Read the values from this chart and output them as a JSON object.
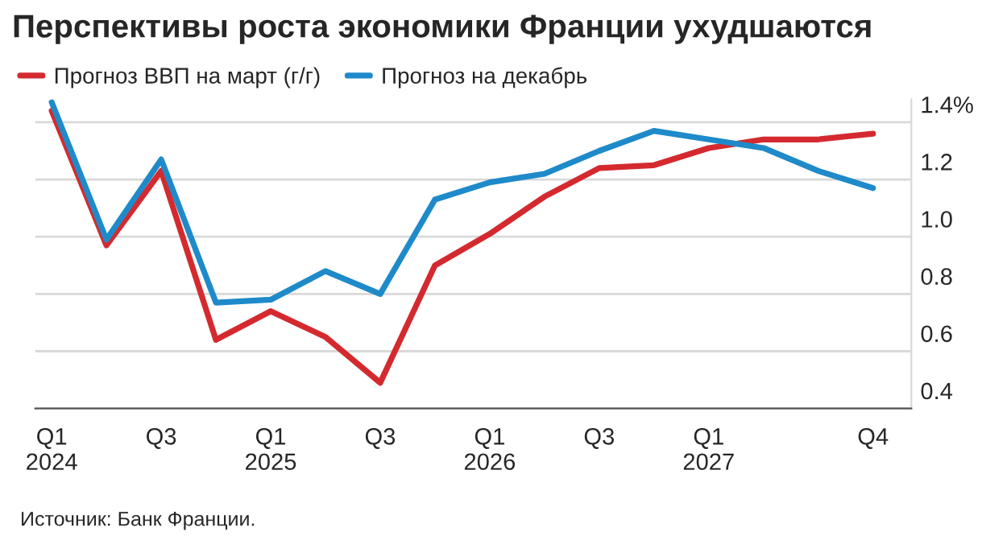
{
  "chart_data": {
    "type": "line",
    "title": "Перспективы роста экономики Франции ухудшаются",
    "categories": [
      "Q1\n2024",
      null,
      "Q3",
      null,
      "Q1\n2025",
      null,
      "Q3",
      null,
      "Q1\n2026",
      null,
      "Q3",
      null,
      "Q1\n2027",
      null,
      null,
      "Q4"
    ],
    "series": [
      {
        "name": "Прогноз ВВП на март (г/г)",
        "color": "#d42a2f",
        "values": [
          1.44,
          0.97,
          1.23,
          0.64,
          0.74,
          0.65,
          0.49,
          0.9,
          1.01,
          1.14,
          1.24,
          1.25,
          1.31,
          1.34,
          1.34,
          1.36
        ]
      },
      {
        "name": "Прогноз на декабрь",
        "color": "#1f8ac9",
        "values": [
          1.47,
          0.99,
          1.27,
          0.77,
          0.78,
          0.88,
          0.8,
          1.13,
          1.19,
          1.22,
          1.3,
          1.37,
          1.34,
          1.31,
          1.23,
          1.17
        ]
      }
    ],
    "ylim": [
      0.4,
      1.48
    ],
    "yticks": [
      {
        "value": 0.4,
        "label": "0.4"
      },
      {
        "value": 0.6,
        "label": "0.6"
      },
      {
        "value": 0.8,
        "label": "0.8"
      },
      {
        "value": 1.0,
        "label": "1.0"
      },
      {
        "value": 1.2,
        "label": "1.2"
      },
      {
        "value": 1.4,
        "label": "1.4%"
      }
    ],
    "grid": "y",
    "legend": "top left",
    "marker": "none",
    "line_style": "solid",
    "annotations": [
      "Источник: Банк Франции."
    ]
  }
}
